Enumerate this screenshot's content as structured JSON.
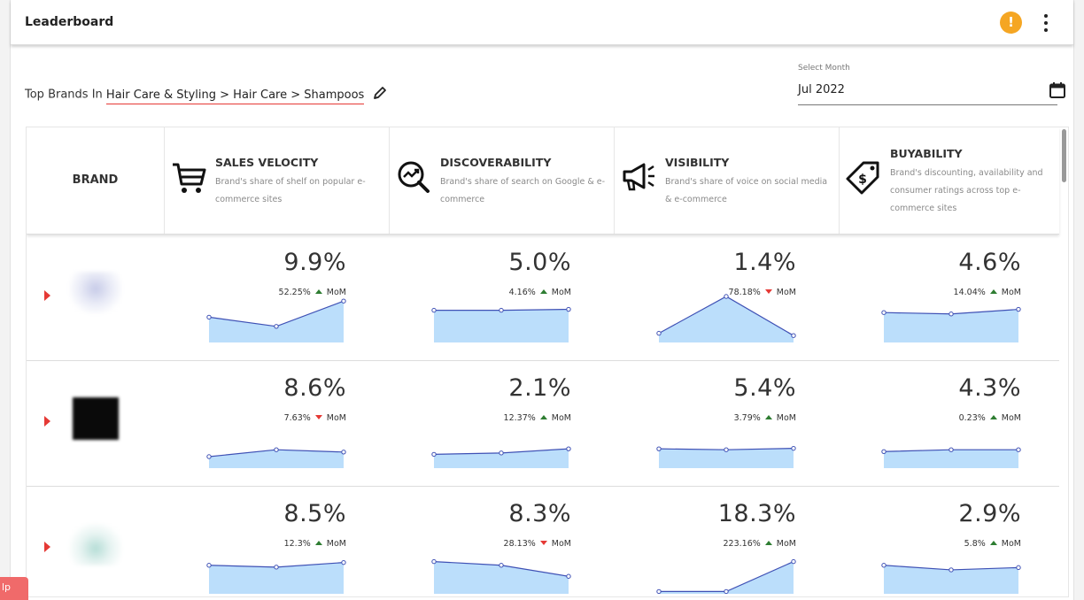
{
  "header": {
    "title": "Leaderboard",
    "alert_icon": "alert-icon",
    "menu_icon": "more-vert-icon"
  },
  "filter": {
    "prefix": "Top Brands In",
    "category_path": "Hair Care & Styling > Hair Care > Shampoos"
  },
  "month": {
    "label": "Select Month",
    "value": "Jul 2022"
  },
  "table": {
    "brand_header": "BRAND",
    "metrics": [
      {
        "title": "SALES VELOCITY",
        "desc": "Brand's share of shelf on popular e-commerce sites",
        "icon": "cart-icon"
      },
      {
        "title": "DISCOVERABILITY",
        "desc": "Brand's share of search on Google & e-commerce",
        "icon": "search-trend-icon"
      },
      {
        "title": "VISIBILITY",
        "desc": "Brand's share of voice on social media & e-commerce",
        "icon": "megaphone-icon"
      },
      {
        "title": "BUYABILITY",
        "desc": "Brand's discounting, availability and consumer ratings across top e-commerce sites",
        "icon": "price-tag-icon"
      }
    ],
    "rows": [
      {
        "brand": "dove",
        "metrics": [
          {
            "value": "9.9%",
            "change": "52.25%",
            "dir": "up",
            "label": "MoM",
            "trend": [
              0.55,
              0.35,
              0.9
            ]
          },
          {
            "value": "5.0%",
            "change": "4.16%",
            "dir": "up",
            "label": "MoM",
            "trend": [
              0.7,
              0.7,
              0.72
            ]
          },
          {
            "value": "1.4%",
            "change": "78.18%",
            "dir": "down",
            "label": "MoM",
            "trend": [
              0.2,
              1.0,
              0.15
            ]
          },
          {
            "value": "4.6%",
            "change": "14.04%",
            "dir": "up",
            "label": "MoM",
            "trend": [
              0.65,
              0.62,
              0.72
            ]
          }
        ]
      },
      {
        "brand": "black",
        "metrics": [
          {
            "value": "8.6%",
            "change": "7.63%",
            "dir": "down",
            "label": "MoM",
            "trend": [
              0.25,
              0.4,
              0.35
            ]
          },
          {
            "value": "2.1%",
            "change": "12.37%",
            "dir": "up",
            "label": "MoM",
            "trend": [
              0.3,
              0.33,
              0.42
            ]
          },
          {
            "value": "5.4%",
            "change": "3.79%",
            "dir": "up",
            "label": "MoM",
            "trend": [
              0.42,
              0.4,
              0.43
            ]
          },
          {
            "value": "4.3%",
            "change": "0.23%",
            "dir": "up",
            "label": "MoM",
            "trend": [
              0.36,
              0.4,
              0.4
            ]
          }
        ]
      },
      {
        "brand": "green",
        "metrics": [
          {
            "value": "8.5%",
            "change": "12.3%",
            "dir": "up",
            "label": "MoM",
            "trend": [
              0.62,
              0.58,
              0.68
            ]
          },
          {
            "value": "8.3%",
            "change": "28.13%",
            "dir": "down",
            "label": "MoM",
            "trend": [
              0.7,
              0.62,
              0.38
            ]
          },
          {
            "value": "18.3%",
            "change": "223.16%",
            "dir": "up",
            "label": "MoM",
            "trend": [
              0.05,
              0.05,
              0.7
            ]
          },
          {
            "value": "2.9%",
            "change": "5.8%",
            "dir": "up",
            "label": "MoM",
            "trend": [
              0.62,
              0.52,
              0.57
            ]
          }
        ]
      }
    ]
  },
  "help_tab": "lp",
  "colors": {
    "accent_red": "#e53935",
    "up_green": "#2e7d32",
    "sparkline_fill": "#bbdefb",
    "sparkline_line": "#3f51b5",
    "alert_orange": "#f5a623"
  }
}
